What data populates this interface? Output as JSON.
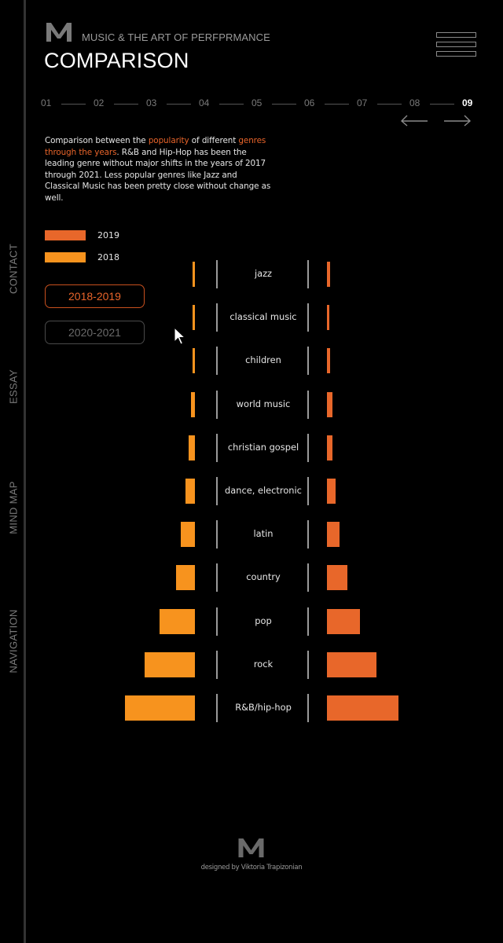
{
  "header": {
    "subtitle": "MUSIC & THE ART OF PERFPRMANCE",
    "title": "COMPARISON",
    "logo_icon": "m-logo-icon",
    "menu_icon": "hamburger-menu-icon"
  },
  "side_nav": {
    "items": [
      {
        "label": "CONTACT",
        "y": 342
      },
      {
        "label": "ESSAY",
        "y": 492
      },
      {
        "label": "MIND MAP",
        "y": 646
      },
      {
        "label": "NAVIGATION",
        "y": 816
      }
    ]
  },
  "steps": {
    "items": [
      "01",
      "02",
      "03",
      "04",
      "05",
      "06",
      "07",
      "08",
      "09"
    ],
    "active": "09",
    "prev_icon": "arrow-left-icon",
    "next_icon": "arrow-right-icon"
  },
  "description": {
    "part1": "Comparison between the ",
    "highlight1": "popularity",
    "part2": " of different ",
    "highlight2": "genres through the years",
    "part3": ". R&B and Hip-Hop has been the leading genre without major shifts in the years of 2017 through 2021. Less popular genres like Jazz and Classical Music has been pretty close without change as well."
  },
  "legend": [
    {
      "label": "2019",
      "color": "#e8672a"
    },
    {
      "label": "2018",
      "color": "#f7931e"
    }
  ],
  "year_buttons": [
    {
      "label": "2018-2019",
      "active": true
    },
    {
      "label": "2020-2021",
      "active": false
    }
  ],
  "colors": {
    "accent": "#e8642a",
    "bar_2018": "#f7931e",
    "bar_2019": "#e8672a",
    "background": "#000000"
  },
  "chart_data": {
    "type": "bar",
    "orientation": "horizontal-butterfly",
    "title": "",
    "categories": [
      "jazz",
      "classical music",
      "children",
      "world music",
      "christian gospel",
      "dance, electronic",
      "latin",
      "country",
      "pop",
      "rock",
      "R&B/hip-hop"
    ],
    "series": [
      {
        "name": "2018",
        "side": "left",
        "color": "#f7931e",
        "values": [
          3,
          3,
          3,
          5,
          8,
          12,
          18,
          24,
          45,
          64,
          89
        ]
      },
      {
        "name": "2019",
        "side": "right",
        "color": "#e8672a",
        "values": [
          4,
          3,
          4,
          7,
          7,
          11,
          16,
          26,
          42,
          63,
          91
        ]
      }
    ],
    "units": "relative bar length (px, no axis shown)",
    "xlabel": "",
    "ylabel": "",
    "grid": false,
    "legend_position": "top-left"
  },
  "footer": {
    "credit": "designed by Viktoria Trapizonian",
    "logo_icon": "m-logo-icon"
  }
}
